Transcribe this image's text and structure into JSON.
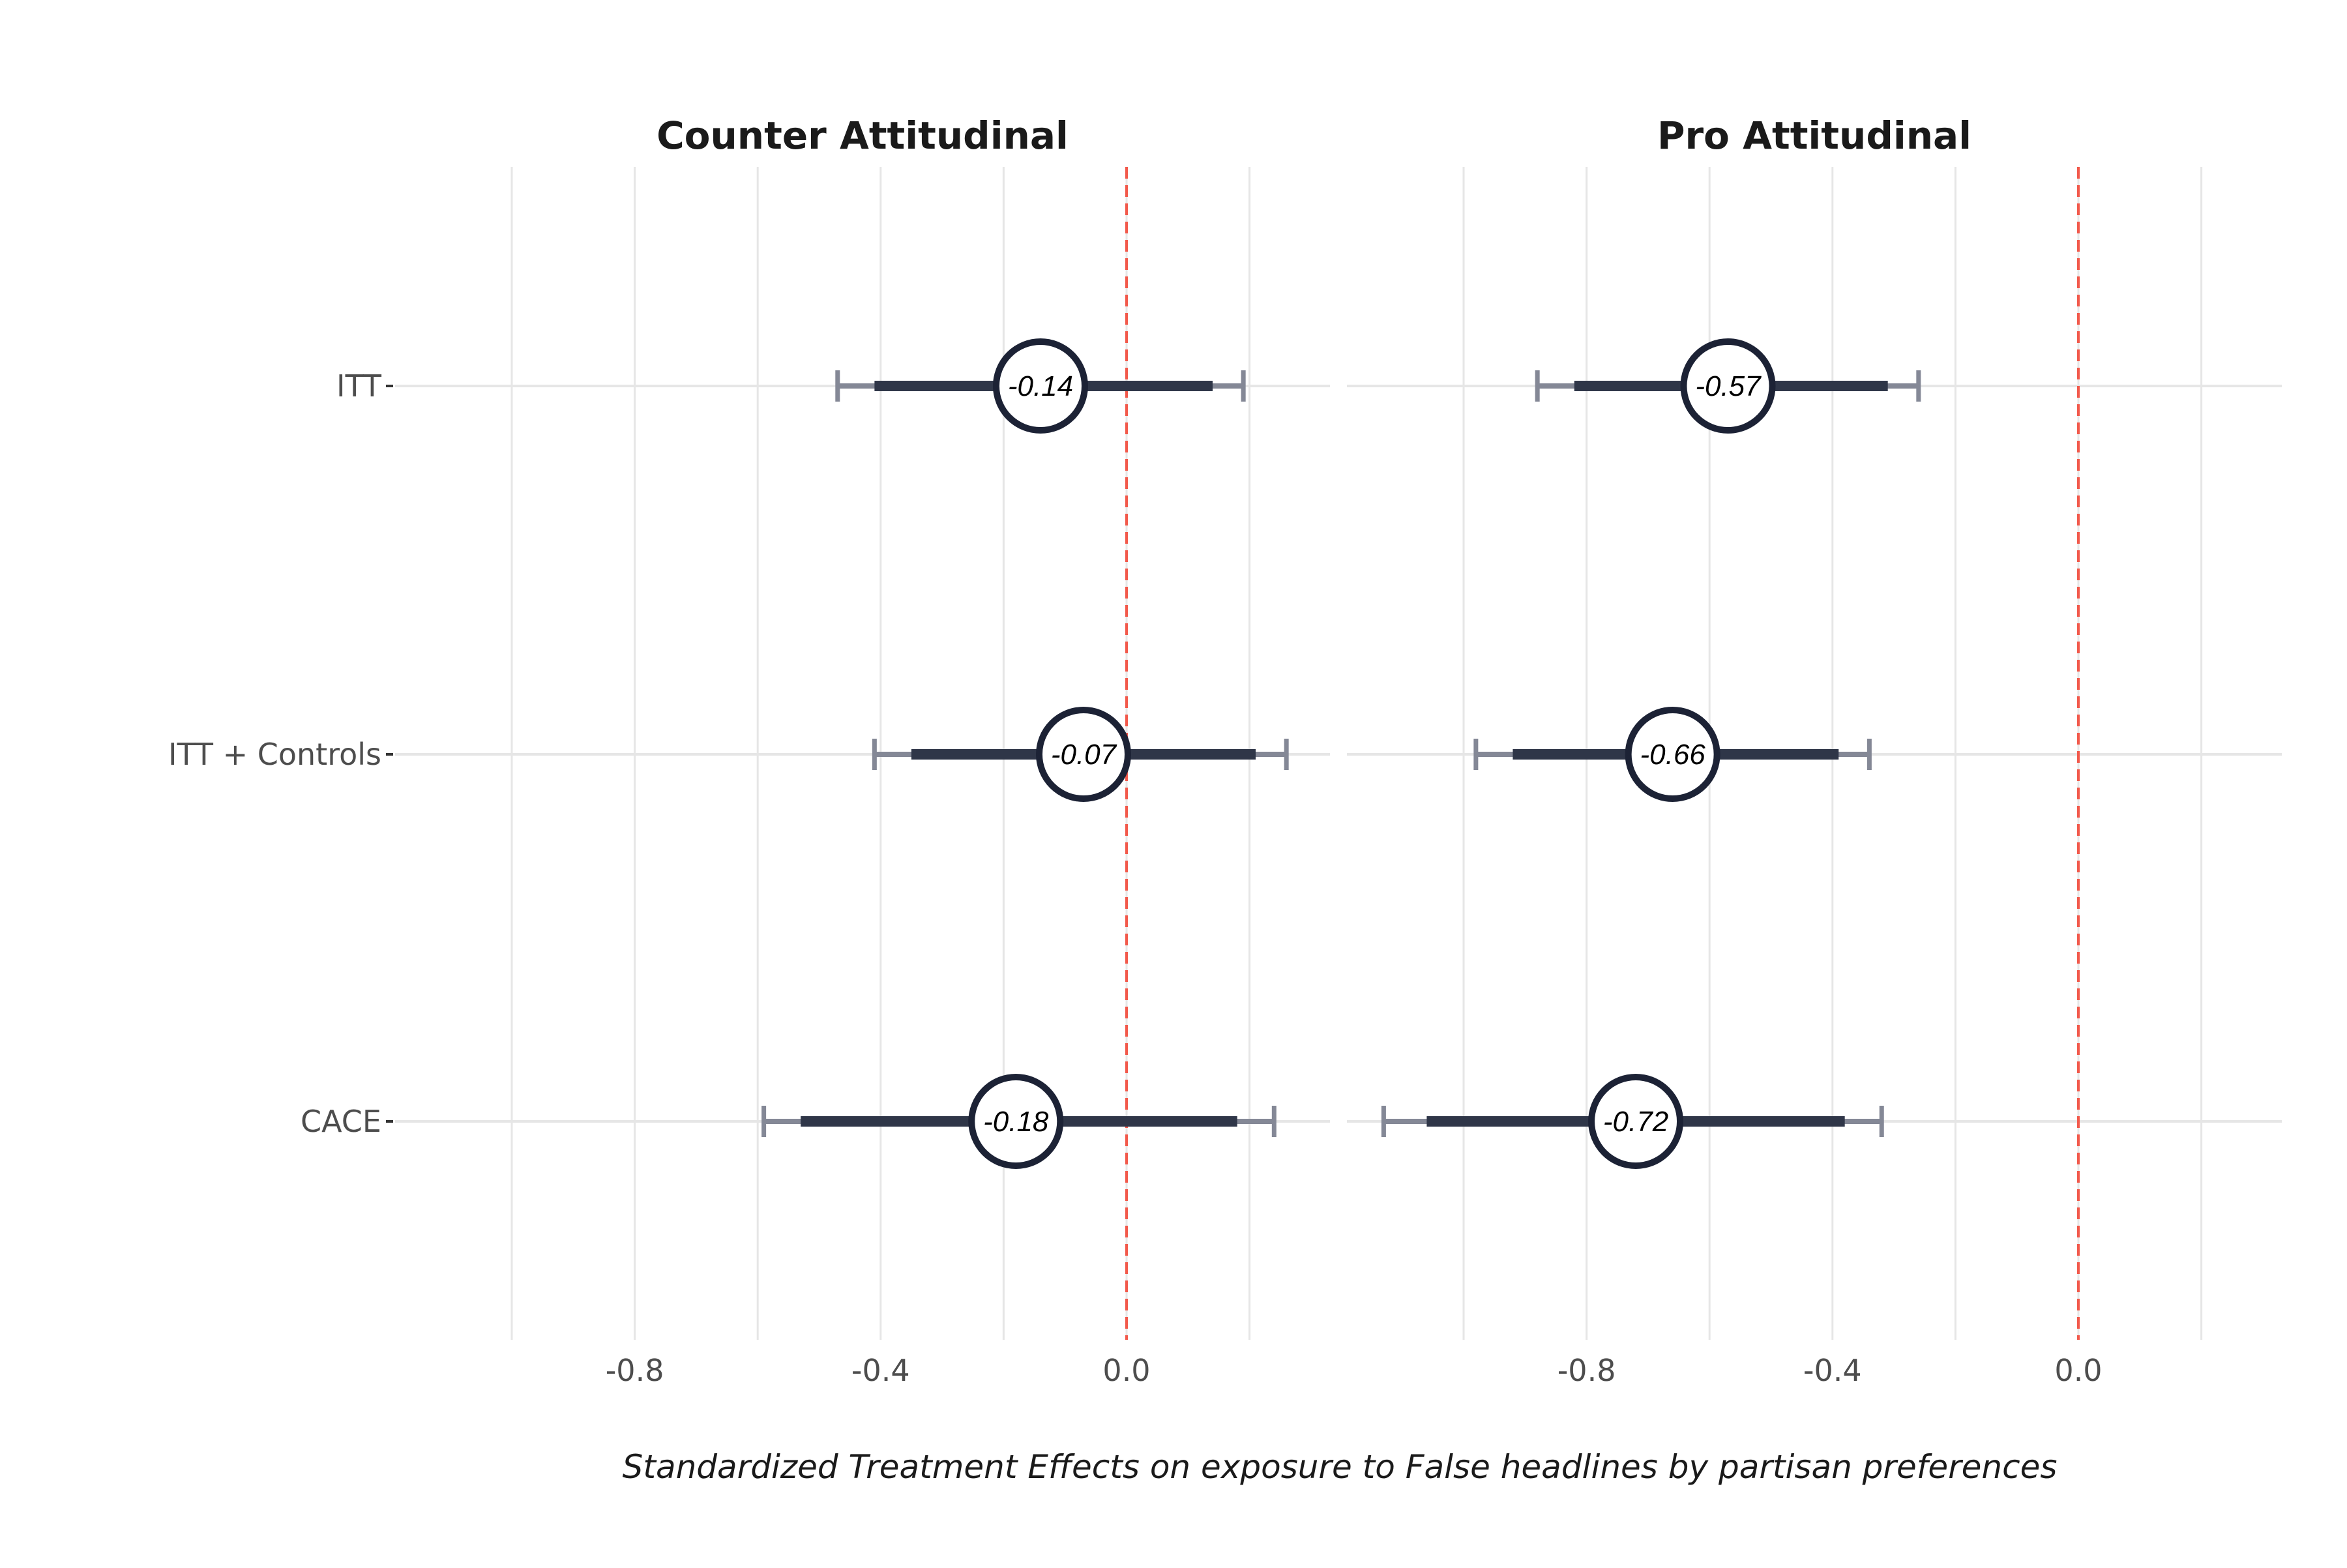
{
  "chart_data": {
    "type": "forest",
    "title": "",
    "xlabel": "Standardized Treatment Effects on exposure to False headlines by partisan preferences",
    "ylabel": "",
    "xlim": [
      -1.0,
      0.3
    ],
    "x_ticks": [
      -0.8,
      -0.4,
      0.0
    ],
    "x_tick_labels": [
      "-0.8",
      "-0.4",
      "0.0"
    ],
    "x_minor_gridlines": [
      -1.0,
      -0.6,
      -0.2,
      0.2
    ],
    "reference_line": 0.0,
    "grid": true,
    "categories": [
      "ITT",
      "ITT + Controls",
      "CACE"
    ],
    "colors": {
      "estimate_ring": "#1c2235",
      "inner_ci": "#2f3648",
      "outer_ci": "#848896",
      "reference_line": "#f2594b",
      "grid": "#e6e6e6",
      "axis_text": "#4d4d4d"
    },
    "panels": [
      {
        "title": "Counter Attitudinal",
        "estimates": [
          {
            "category": "ITT",
            "estimate": -0.14,
            "label": "-0.14",
            "ci90": [
              -0.41,
              0.14
            ],
            "ci95": [
              -0.47,
              0.19
            ]
          },
          {
            "category": "ITT + Controls",
            "estimate": -0.07,
            "label": "-0.07",
            "ci90": [
              -0.35,
              0.21
            ],
            "ci95": [
              -0.41,
              0.26
            ]
          },
          {
            "category": "CACE",
            "estimate": -0.18,
            "label": "-0.18",
            "ci90": [
              -0.53,
              0.18
            ],
            "ci95": [
              -0.59,
              0.24
            ]
          }
        ]
      },
      {
        "title": "Pro Attitudinal",
        "estimates": [
          {
            "category": "ITT",
            "estimate": -0.57,
            "label": "-0.57",
            "ci90": [
              -0.82,
              -0.31
            ],
            "ci95": [
              -0.88,
              -0.26
            ]
          },
          {
            "category": "ITT + Controls",
            "estimate": -0.66,
            "label": "-0.66",
            "ci90": [
              -0.92,
              -0.39
            ],
            "ci95": [
              -0.98,
              -0.34
            ]
          },
          {
            "category": "CACE",
            "estimate": -0.72,
            "label": "-0.72",
            "ci90": [
              -1.06,
              -0.38
            ],
            "ci95": [
              -1.13,
              -0.32
            ]
          }
        ]
      }
    ]
  }
}
